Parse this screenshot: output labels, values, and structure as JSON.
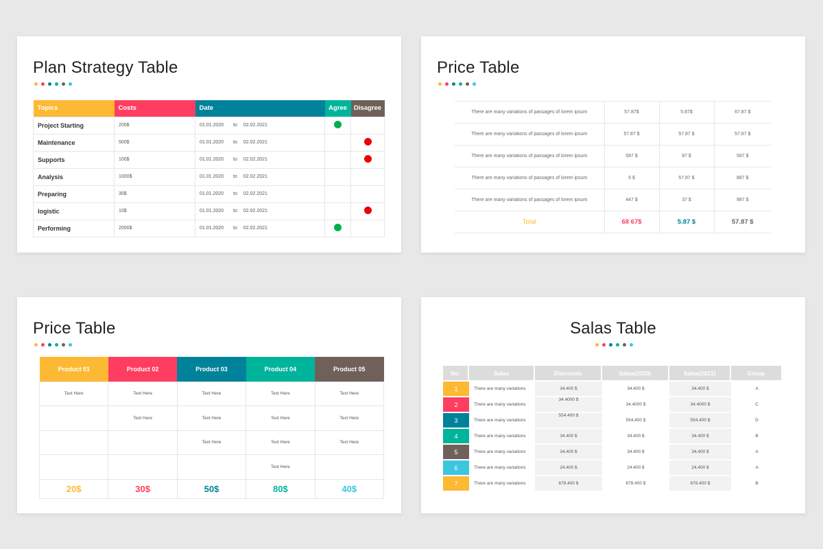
{
  "colors": {
    "yellow": "#FDB933",
    "pink": "#FF3D60",
    "blue": "#00829A",
    "green": "#00B49C",
    "brown": "#6F615A",
    "cyan": "#3CC5DF",
    "agree": "#00B04F",
    "disagree": "#F00000"
  },
  "plan": {
    "title": "Plan Strategy Table",
    "headers": [
      "Topics",
      "Costs",
      "Date",
      "Agree",
      "Disagree"
    ],
    "rows": [
      {
        "topic": "Project Starting",
        "cost": "200$",
        "from": "01.01.2020",
        "to": "to",
        "until": "02.02.2021",
        "vote": "agree"
      },
      {
        "topic": "Maintenance",
        "cost": "500$",
        "from": "01.01.2020",
        "to": "to",
        "until": "02.02.2021",
        "vote": "disagree"
      },
      {
        "topic": "Supports",
        "cost": "100$",
        "from": "01.01.2020",
        "to": "to",
        "until": "02.02.2021",
        "vote": "disagree"
      },
      {
        "topic": "Analysis",
        "cost": "1000$",
        "from": "01.01.2020",
        "to": "to",
        "until": "02.02.2021",
        "vote": ""
      },
      {
        "topic": "Preparing",
        "cost": "30$",
        "from": "01.01.2020",
        "to": "to",
        "until": "02.02.2021",
        "vote": ""
      },
      {
        "topic": "logistic",
        "cost": "10$",
        "from": "01.01.2020",
        "to": "to",
        "until": "02.02.2021",
        "vote": "disagree"
      },
      {
        "topic": "Performing",
        "cost": "2000$",
        "from": "01.01.2020",
        "to": "to",
        "until": "02.02.2021",
        "vote": "agree"
      }
    ]
  },
  "price1": {
    "title": "Price Table",
    "rows": [
      [
        "There are many variations of passages of lorem ipsum",
        "57.87$",
        "5.87$",
        "67.87 $"
      ],
      [
        "There are many variations of passages of lorem ipsum",
        "57.87 $",
        "57.87 $",
        "57.87 $"
      ],
      [
        "There are many variations of passages of lorem ipsum",
        "587 $",
        "87 $",
        "587 $"
      ],
      [
        "There are many variations of passages of lorem ipsum",
        "5 $",
        "57.87 $",
        "887 $"
      ],
      [
        "There are many variations of passages of lorem ipsum",
        "447 $",
        "37 $",
        "987 $"
      ]
    ],
    "total": [
      "Total",
      "68 67$",
      "5.87 $",
      "57.87 $"
    ]
  },
  "price2": {
    "title": "Price Table",
    "products": [
      "Product 01",
      "Product 02",
      "Product 03",
      "Product 04",
      "Product 05"
    ],
    "rows": [
      [
        "Text Here",
        "Text Here",
        "Text Here",
        "Text Here",
        "Text Here"
      ],
      [
        "",
        "Text Here",
        "Text Here",
        "Text Here",
        "Text Here"
      ],
      [
        "",
        "",
        "Text Here",
        "Text Here",
        "Text Here"
      ],
      [
        "",
        "",
        "",
        "Text Here",
        ""
      ]
    ],
    "prices": [
      "20$",
      "30$",
      "50$",
      "80$",
      "40$"
    ]
  },
  "salas": {
    "title": "Salas Table",
    "headers": [
      "No.",
      "Salas",
      "Discounts",
      "Salas(2020)",
      "Salas(2021)",
      "Group"
    ],
    "rows": [
      [
        "1",
        "There are many variations",
        "34.400 $",
        "34.400 $",
        "34.400 $",
        "A"
      ],
      [
        "2",
        "There are many variations",
        "34.4000 $",
        "34.4000 $",
        "34.4000 $",
        "C"
      ],
      [
        "3",
        "There are many variations",
        "554.400 $",
        "554.400 $",
        "554.400 $",
        "D"
      ],
      [
        "4",
        "There are many variations",
        "34.400 $",
        "34.400 $",
        "34.400 $",
        "B"
      ],
      [
        "5",
        "There are many variations",
        "34.400 $",
        "34.400 $",
        "34.400 $",
        "A"
      ],
      [
        "6",
        "There are many variations",
        "24.400 $",
        "24.400 $",
        "24.400 $",
        "A"
      ],
      [
        "7",
        "There are many variations",
        "678.400 $",
        "678.400 $",
        "678.400 $",
        "B"
      ]
    ]
  }
}
